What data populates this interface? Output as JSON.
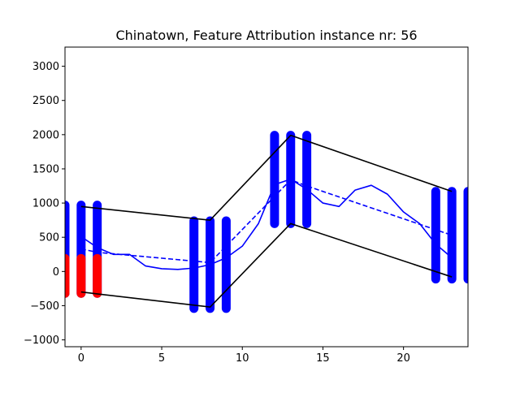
{
  "chart_data": {
    "type": "line",
    "title": "Chinatown, Feature Attribution instance nr: 56",
    "xlabel": "",
    "ylabel": "",
    "xlim": [
      -1,
      24
    ],
    "ylim": [
      -1100,
      3280
    ],
    "grid": false,
    "x_ticks": [
      0,
      5,
      10,
      15,
      20
    ],
    "y_ticks": [
      -1000,
      -500,
      0,
      500,
      1000,
      1500,
      2000,
      2500,
      3000
    ],
    "x_tick_labels": [
      "0",
      "5",
      "10",
      "15",
      "20"
    ],
    "y_tick_labels": [
      "−1000",
      "−500",
      "0",
      "500",
      "1000",
      "1500",
      "2000",
      "2500",
      "3000"
    ],
    "series": [
      {
        "style": "solid",
        "color": "#0000ff",
        "x": [
          0,
          1,
          2,
          3,
          4,
          5,
          6,
          7,
          8,
          9,
          10,
          11,
          12,
          13,
          14,
          15,
          16,
          17,
          18,
          19,
          20,
          21,
          22,
          23
        ],
        "values": [
          510,
          350,
          250,
          250,
          80,
          40,
          30,
          50,
          100,
          200,
          370,
          700,
          1270,
          1350,
          1200,
          1000,
          950,
          1190,
          1260,
          1130,
          870,
          700,
          400,
          200
        ]
      },
      {
        "style": "dashed",
        "color": "#0000ff",
        "x": [
          0,
          1,
          8,
          13,
          14,
          23
        ],
        "values": [
          330,
          280,
          130,
          1340,
          1250,
          530
        ]
      },
      {
        "style": "solid",
        "color": "#000000",
        "x": [
          0,
          8,
          13,
          23
        ],
        "values": [
          950,
          750,
          1990,
          1170
        ]
      },
      {
        "style": "solid",
        "color": "#000000",
        "x": [
          0,
          8,
          13,
          23
        ],
        "values": [
          -300,
          -520,
          700,
          -80
        ]
      }
    ],
    "intervals": [
      {
        "x": -1,
        "low": -320,
        "high": 970,
        "color": "#0000ff"
      },
      {
        "x": 0,
        "low": -320,
        "high": 970,
        "color": "#0000ff"
      },
      {
        "x": 1,
        "low": -320,
        "high": 970,
        "color": "#0000ff"
      },
      {
        "x": 7,
        "low": -540,
        "high": 740,
        "color": "#0000ff"
      },
      {
        "x": 8,
        "low": -540,
        "high": 740,
        "color": "#0000ff"
      },
      {
        "x": 9,
        "low": -540,
        "high": 740,
        "color": "#0000ff"
      },
      {
        "x": 12,
        "low": 700,
        "high": 1990,
        "color": "#0000ff"
      },
      {
        "x": 13,
        "low": 700,
        "high": 1990,
        "color": "#0000ff"
      },
      {
        "x": 14,
        "low": 700,
        "high": 1990,
        "color": "#0000ff"
      },
      {
        "x": 22,
        "low": -110,
        "high": 1170,
        "color": "#0000ff"
      },
      {
        "x": 23,
        "low": -110,
        "high": 1170,
        "color": "#0000ff"
      },
      {
        "x": 24,
        "low": -110,
        "high": 1170,
        "color": "#0000ff"
      },
      {
        "x": -1,
        "low": -320,
        "high": 190,
        "color": "#ff0000"
      },
      {
        "x": 0,
        "low": -320,
        "high": 190,
        "color": "#ff0000"
      },
      {
        "x": 1,
        "low": -320,
        "high": 190,
        "color": "#ff0000"
      }
    ]
  }
}
